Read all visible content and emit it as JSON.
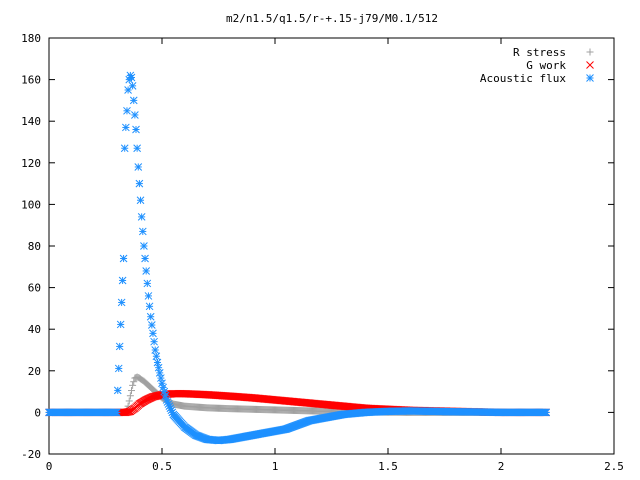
{
  "chart_data": {
    "type": "scatter",
    "title": "m2/n1.5/q1.5/r-+.15-j79/M0.1/512",
    "xlabel": "",
    "ylabel": "",
    "xlim": [
      0,
      2.5
    ],
    "ylim": [
      -20,
      180
    ],
    "x_ticks": [
      0,
      0.5,
      1,
      1.5,
      2,
      2.5
    ],
    "x_tick_labels": [
      "0",
      "0.5",
      "1",
      "1.5",
      "2",
      "2.5"
    ],
    "y_ticks": [
      -20,
      0,
      20,
      40,
      60,
      80,
      100,
      120,
      140,
      160,
      180
    ],
    "y_tick_labels": [
      "-20",
      "0",
      "20",
      "40",
      "60",
      "80",
      "100",
      "120",
      "140",
      "160",
      "180"
    ],
    "grid": false,
    "legend_position": "top-right",
    "series": [
      {
        "name": "R stress",
        "marker": "plus",
        "color": "#a0a0a0",
        "points": [
          [
            0,
            0
          ],
          [
            0.1,
            0
          ],
          [
            0.2,
            0
          ],
          [
            0.3,
            0
          ],
          [
            0.34,
            0
          ],
          [
            0.35,
            3
          ],
          [
            0.36,
            8
          ],
          [
            0.37,
            13
          ],
          [
            0.38,
            16.5
          ],
          [
            0.39,
            17
          ],
          [
            0.4,
            16.5
          ],
          [
            0.42,
            15
          ],
          [
            0.45,
            12
          ],
          [
            0.5,
            7
          ],
          [
            0.55,
            4
          ],
          [
            0.6,
            3
          ],
          [
            0.7,
            2.2
          ],
          [
            0.8,
            1.8
          ],
          [
            1,
            1.2
          ],
          [
            1.2,
            0.6
          ],
          [
            1.4,
            0.2
          ],
          [
            1.6,
            0
          ],
          [
            1.8,
            0
          ],
          [
            2,
            0
          ],
          [
            2.2,
            0
          ]
        ]
      },
      {
        "name": "G work",
        "marker": "cross",
        "color": "#ff0000",
        "points": [
          [
            0,
            0
          ],
          [
            0.1,
            0
          ],
          [
            0.2,
            0
          ],
          [
            0.3,
            0
          ],
          [
            0.34,
            0
          ],
          [
            0.36,
            0.5
          ],
          [
            0.38,
            2
          ],
          [
            0.4,
            4
          ],
          [
            0.43,
            6
          ],
          [
            0.46,
            7.5
          ],
          [
            0.5,
            8.5
          ],
          [
            0.55,
            9
          ],
          [
            0.6,
            9
          ],
          [
            0.7,
            8.5
          ],
          [
            0.8,
            7.8
          ],
          [
            0.9,
            7
          ],
          [
            1,
            6
          ],
          [
            1.1,
            5
          ],
          [
            1.2,
            4
          ],
          [
            1.3,
            3
          ],
          [
            1.4,
            2
          ],
          [
            1.5,
            1.5
          ],
          [
            1.6,
            1
          ],
          [
            1.8,
            0.5
          ],
          [
            2,
            0
          ],
          [
            2.2,
            0
          ]
        ]
      },
      {
        "name": "Acoustic flux",
        "marker": "star",
        "color": "#1e90ff",
        "points": [
          [
            0,
            0
          ],
          [
            0.1,
            0
          ],
          [
            0.2,
            0
          ],
          [
            0.3,
            0
          ],
          [
            0.33,
            74
          ],
          [
            0.335,
            127
          ],
          [
            0.34,
            137
          ],
          [
            0.345,
            145
          ],
          [
            0.35,
            155
          ],
          [
            0.355,
            160
          ],
          [
            0.36,
            162
          ],
          [
            0.365,
            161
          ],
          [
            0.37,
            157
          ],
          [
            0.375,
            150
          ],
          [
            0.38,
            143
          ],
          [
            0.385,
            136
          ],
          [
            0.39,
            127
          ],
          [
            0.395,
            118
          ],
          [
            0.4,
            110
          ],
          [
            0.405,
            102
          ],
          [
            0.41,
            94
          ],
          [
            0.415,
            87
          ],
          [
            0.42,
            80
          ],
          [
            0.425,
            74
          ],
          [
            0.43,
            68
          ],
          [
            0.435,
            62
          ],
          [
            0.44,
            56
          ],
          [
            0.445,
            51
          ],
          [
            0.45,
            46
          ],
          [
            0.46,
            38
          ],
          [
            0.47,
            30
          ],
          [
            0.48,
            24
          ],
          [
            0.5,
            14
          ],
          [
            0.52,
            6
          ],
          [
            0.55,
            -1
          ],
          [
            0.6,
            -7
          ],
          [
            0.65,
            -11
          ],
          [
            0.7,
            -13
          ],
          [
            0.75,
            -13.5
          ],
          [
            0.8,
            -13
          ],
          [
            0.85,
            -12
          ],
          [
            0.9,
            -11
          ],
          [
            0.95,
            -10
          ],
          [
            1,
            -9
          ],
          [
            1.05,
            -8
          ],
          [
            1.1,
            -6
          ],
          [
            1.15,
            -4
          ],
          [
            1.2,
            -3
          ],
          [
            1.3,
            -1
          ],
          [
            1.4,
            0
          ],
          [
            1.5,
            0.5
          ],
          [
            1.6,
            0.7
          ],
          [
            1.7,
            0.5
          ],
          [
            1.8,
            0.3
          ],
          [
            1.9,
            0.2
          ],
          [
            2,
            0
          ],
          [
            2.1,
            0
          ],
          [
            2.2,
            0
          ]
        ]
      }
    ]
  }
}
